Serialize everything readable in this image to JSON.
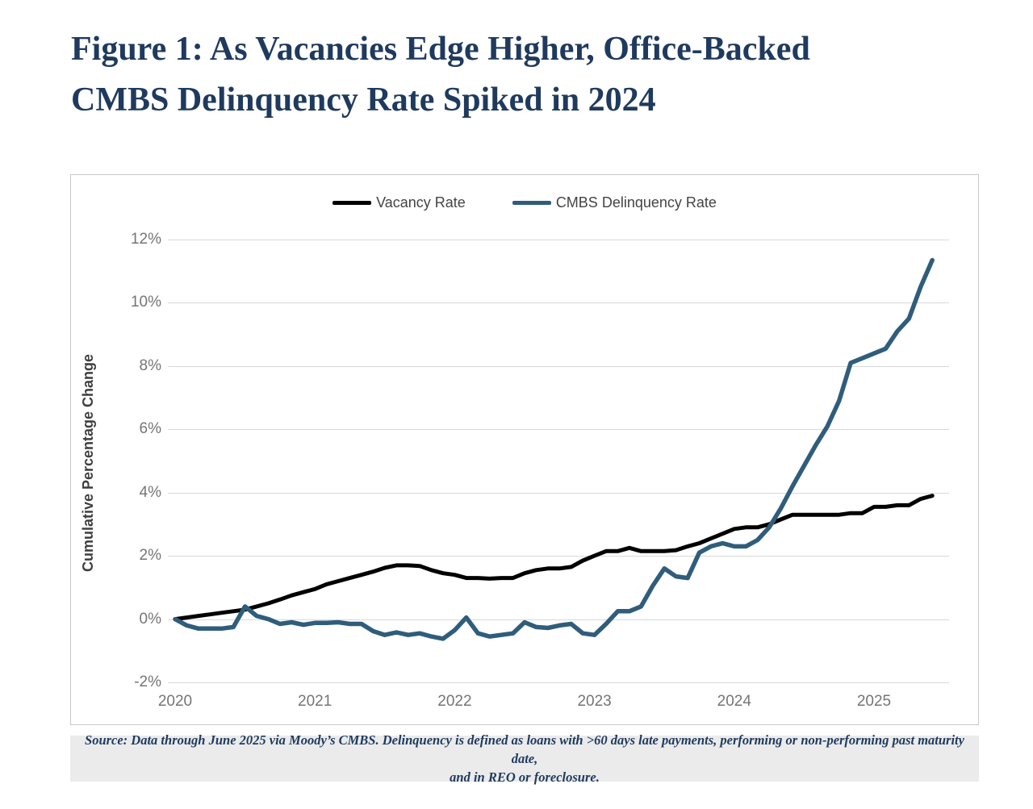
{
  "figure_title": {
    "line1": "Figure 1: As Vacancies Edge Higher, Office-Backed",
    "line2": "CMBS Delinquency Rate Spiked in 2024",
    "color": "#1f3a5e"
  },
  "colors": {
    "title_navy": "#1f3a5e",
    "grid": "#d9d9d9",
    "tick_label": "#757575",
    "axis_title": "#3f3f3f",
    "panel_border": "#c9c9c9",
    "source_background": "#ebebeb"
  },
  "chart_data": {
    "type": "line",
    "title": "Figure 1: As Vacancies Edge Higher, Office-Backed CMBS Delinquency Rate Spiked in 2024",
    "xlabel": "",
    "ylabel": "Cumulative Percentage Change",
    "grid": "horizontal",
    "legend_position": "top-center",
    "x_start_year": 2020,
    "x_step_months": 1,
    "data_through": "June 2025",
    "x_tick_labels": [
      "2020",
      "2021",
      "2022",
      "2023",
      "2024",
      "2025"
    ],
    "x_tick_values": [
      2020,
      2021,
      2022,
      2023,
      2024,
      2025
    ],
    "y_tick_labels": [
      "12%",
      "10%",
      "8%",
      "6%",
      "4%",
      "2%",
      "0%",
      "-2%"
    ],
    "y_tick_values": [
      12,
      10,
      8,
      6,
      4,
      2,
      0,
      -2
    ],
    "ylim": [
      -2,
      12
    ],
    "series": [
      {
        "name": "Vacancy Rate",
        "color": "#000000",
        "stroke_width": 5,
        "values": [
          0.0,
          0.05,
          0.1,
          0.15,
          0.2,
          0.25,
          0.3,
          0.4,
          0.5,
          0.62,
          0.75,
          0.85,
          0.95,
          1.1,
          1.2,
          1.3,
          1.4,
          1.5,
          1.62,
          1.7,
          1.7,
          1.68,
          1.55,
          1.45,
          1.4,
          1.3,
          1.3,
          1.28,
          1.3,
          1.3,
          1.45,
          1.55,
          1.6,
          1.6,
          1.65,
          1.85,
          2.0,
          2.15,
          2.15,
          2.25,
          2.15,
          2.15,
          2.15,
          2.18,
          2.3,
          2.4,
          2.55,
          2.7,
          2.85,
          2.9,
          2.9,
          3.0,
          3.15,
          3.3,
          3.3,
          3.3,
          3.3,
          3.3,
          3.35,
          3.35,
          3.55,
          3.55,
          3.6,
          3.6,
          3.8,
          3.9
        ]
      },
      {
        "name": "CMBS Delinquency Rate",
        "color": "#2f5d7b",
        "stroke_width": 5.5,
        "values": [
          0.0,
          -0.2,
          -0.3,
          -0.3,
          -0.3,
          -0.25,
          0.4,
          0.1,
          0.0,
          -0.15,
          -0.1,
          -0.18,
          -0.12,
          -0.12,
          -0.1,
          -0.15,
          -0.15,
          -0.38,
          -0.5,
          -0.42,
          -0.5,
          -0.45,
          -0.55,
          -0.62,
          -0.35,
          0.05,
          -0.45,
          -0.55,
          -0.5,
          -0.45,
          -0.1,
          -0.25,
          -0.28,
          -0.2,
          -0.15,
          -0.45,
          -0.5,
          -0.15,
          0.25,
          0.25,
          0.4,
          1.05,
          1.6,
          1.35,
          1.3,
          2.1,
          2.3,
          2.4,
          2.3,
          2.3,
          2.5,
          2.9,
          3.5,
          4.2,
          4.85,
          5.5,
          6.1,
          6.9,
          8.1,
          8.25,
          8.4,
          8.55,
          9.1,
          9.5,
          10.5,
          11.35
        ]
      }
    ]
  },
  "source_note": {
    "line1": "Source: Data through June 2025 via Moody’s CMBS. Delinquency is defined as loans with >60 days late payments, performing or non-performing past maturity date,",
    "line2": "and in REO or foreclosure."
  }
}
